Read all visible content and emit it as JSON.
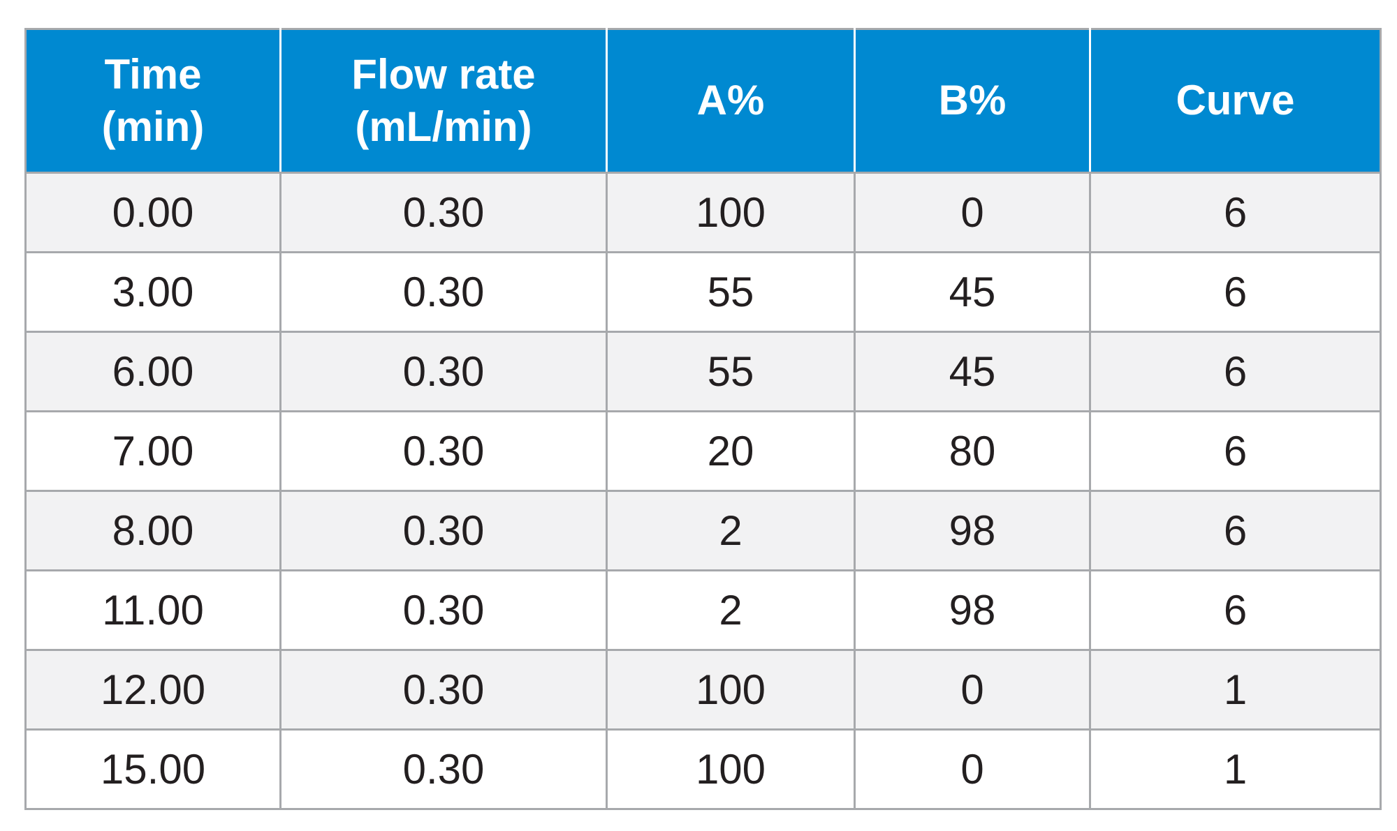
{
  "table": {
    "headers": [
      {
        "line1": "Time",
        "line2": "(min)"
      },
      {
        "line1": "Flow rate",
        "line2": "(mL/min)"
      },
      {
        "line1": "A%",
        "line2": ""
      },
      {
        "line1": "B%",
        "line2": ""
      },
      {
        "line1": "Curve",
        "line2": ""
      }
    ],
    "rows": [
      [
        "0.00",
        "0.30",
        "100",
        "0",
        "6"
      ],
      [
        "3.00",
        "0.30",
        "55",
        "45",
        "6"
      ],
      [
        "6.00",
        "0.30",
        "55",
        "45",
        "6"
      ],
      [
        "7.00",
        "0.30",
        "20",
        "80",
        "6"
      ],
      [
        "8.00",
        "0.30",
        "2",
        "98",
        "6"
      ],
      [
        "11.00",
        "0.30",
        "2",
        "98",
        "6"
      ],
      [
        "12.00",
        "0.30",
        "100",
        "0",
        "1"
      ],
      [
        "15.00",
        "0.30",
        "100",
        "0",
        "1"
      ]
    ]
  },
  "colors": {
    "header_bg": "#0089d1",
    "header_text": "#ffffff",
    "stripe_bg": "#f2f2f3",
    "border": "#a7a9ac",
    "body_text": "#231f20"
  }
}
